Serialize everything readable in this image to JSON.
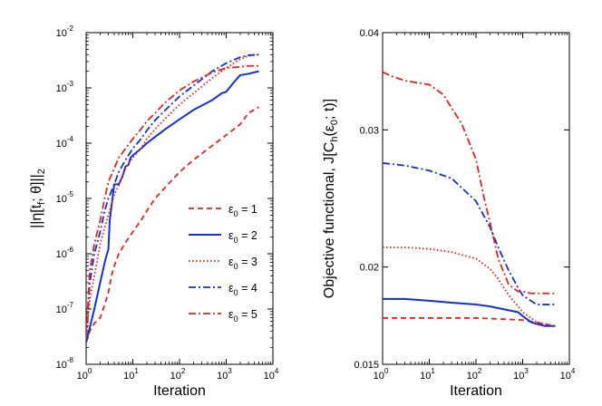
{
  "chart_data": [
    {
      "type": "line",
      "xlabel": "Iteration",
      "ylabel": "||η[t_f; θ]||_2",
      "xscale": "log",
      "yscale": "log",
      "xlim": [
        1,
        10000
      ],
      "ylim": [
        1e-08,
        0.01
      ],
      "grid": false,
      "legend": "lower-right",
      "x_ticks": [
        {
          "value": 1,
          "base": "10",
          "exp": "0"
        },
        {
          "value": 10,
          "base": "10",
          "exp": "1"
        },
        {
          "value": 100,
          "base": "10",
          "exp": "2"
        },
        {
          "value": 1000,
          "base": "10",
          "exp": "3"
        },
        {
          "value": 10000,
          "base": "10",
          "exp": "4"
        }
      ],
      "y_ticks": [
        {
          "value": 1e-08,
          "base": "10",
          "exp": "-8"
        },
        {
          "value": 1e-07,
          "base": "10",
          "exp": "-7"
        },
        {
          "value": 1e-06,
          "base": "10",
          "exp": "-6"
        },
        {
          "value": 1e-05,
          "base": "10",
          "exp": "-5"
        },
        {
          "value": 0.0001,
          "base": "10",
          "exp": "-4"
        },
        {
          "value": 0.001,
          "base": "10",
          "exp": "-3"
        },
        {
          "value": 0.01,
          "base": "10",
          "exp": "-2"
        }
      ],
      "series": [
        {
          "name": "ε0 = 1",
          "color": "#e8231d",
          "style": "dashed",
          "x": [
            1,
            1.2,
            1.5,
            2,
            2.5,
            3,
            3.5,
            4,
            5,
            7,
            10,
            15,
            20,
            30,
            50,
            100,
            200,
            500,
            1000,
            2000,
            3000,
            5000
          ],
          "y": [
            2.5e-08,
            4e-08,
            5.5e-08,
            7e-08,
            1.2e-07,
            2e-07,
            4e-07,
            6e-07,
            1e-06,
            1.6e-06,
            2.5e-06,
            4e-06,
            6e-06,
            1e-05,
            1.6e-05,
            3e-05,
            5e-05,
            9e-05,
            0.00014,
            0.00022,
            0.00035,
            0.00045
          ]
        },
        {
          "name": "ε0 = 2",
          "color": "#1030d8",
          "style": "solid",
          "x": [
            1,
            1.5,
            2,
            2.5,
            2.8,
            3,
            3.2,
            4,
            5,
            6,
            7,
            8,
            9,
            10,
            15,
            20,
            30,
            50,
            100,
            200,
            500,
            800,
            1000,
            1500,
            2000,
            3000,
            5000
          ],
          "y": [
            2.5e-08,
            1e-07,
            3e-07,
            7e-07,
            1e-06,
            1.2e-06,
            4e-06,
            1.8e-05,
            1.8e-05,
            2.5e-05,
            3.8e-05,
            4e-05,
            5.5e-05,
            6e-05,
            8e-05,
            0.0001,
            0.00013,
            0.00018,
            0.00027,
            0.0004,
            0.0006,
            0.0008,
            0.00085,
            0.0013,
            0.0017,
            0.0018,
            0.002
          ]
        },
        {
          "name": "ε0 = 3",
          "color": "#e8231d",
          "style": "dotted",
          "x": [
            1,
            1.2,
            1.5,
            2,
            2.5,
            3,
            4,
            5,
            7,
            10,
            15,
            20,
            30,
            50,
            100,
            200,
            500,
            1000,
            2000,
            3000,
            5000
          ],
          "y": [
            3e-08,
            1.5e-07,
            4e-07,
            1.5e-06,
            3e-06,
            5e-06,
            1.2e-05,
            1.7e-05,
            3.5e-05,
            5.5e-05,
            8e-05,
            0.00012,
            0.00018,
            0.00028,
            0.0005,
            0.0008,
            0.0015,
            0.0023,
            0.0033,
            0.0038,
            0.004
          ]
        },
        {
          "name": "ε0 = 4",
          "color": "#1030d8",
          "style": "dashdot",
          "x": [
            1,
            1.2,
            1.5,
            2,
            2.5,
            3,
            4,
            5,
            7,
            10,
            15,
            20,
            30,
            50,
            100,
            200,
            500,
            1000,
            2000,
            3000,
            5000
          ],
          "y": [
            3e-08,
            3e-07,
            1e-06,
            2.5e-06,
            6e-06,
            1e-05,
            1.8e-05,
            3e-05,
            5e-05,
            8e-05,
            0.00012,
            0.00017,
            0.00026,
            0.0004,
            0.0007,
            0.0011,
            0.002,
            0.0028,
            0.0036,
            0.0039,
            0.004
          ]
        },
        {
          "name": "ε0 = 5",
          "color": "#e8231d",
          "style": "dashdot",
          "x": [
            1,
            1.2,
            1.5,
            2,
            2.5,
            3,
            4,
            5,
            7,
            10,
            15,
            20,
            30,
            50,
            100,
            200,
            500,
            1000,
            2000,
            3000,
            5000
          ],
          "y": [
            3e-08,
            5e-07,
            1.5e-06,
            4e-06,
            1e-05,
            2e-05,
            3.5e-05,
            5.5e-05,
            8e-05,
            0.00012,
            0.00018,
            0.00025,
            0.00035,
            0.00055,
            0.0009,
            0.0013,
            0.0019,
            0.0023,
            0.0024,
            0.0025,
            0.0025
          ]
        }
      ]
    },
    {
      "type": "line",
      "xlabel": "Iteration",
      "ylabel": "Objective functional, J[C_h(ε_0; t)]",
      "xscale": "log",
      "yscale": "log",
      "xlim": [
        1,
        10000
      ],
      "ylim": [
        0.015,
        0.04
      ],
      "grid": false,
      "x_ticks": [
        {
          "value": 1,
          "base": "10",
          "exp": "0"
        },
        {
          "value": 10,
          "base": "10",
          "exp": "1"
        },
        {
          "value": 100,
          "base": "10",
          "exp": "2"
        },
        {
          "value": 1000,
          "base": "10",
          "exp": "3"
        },
        {
          "value": 10000,
          "base": "10",
          "exp": "4"
        }
      ],
      "y_ticks": [
        {
          "value": 0.015,
          "label": "0.015"
        },
        {
          "value": 0.02,
          "label": "0.02"
        },
        {
          "value": 0.03,
          "label": "0.03"
        },
        {
          "value": 0.04,
          "label": "0.04"
        }
      ],
      "series": [
        {
          "name": "ε0 = 1",
          "color": "#e8231d",
          "style": "dashed",
          "x": [
            1,
            10,
            100,
            1000,
            3000,
            5000
          ],
          "y": [
            0.0172,
            0.0172,
            0.0172,
            0.0171,
            0.0169,
            0.0168
          ]
        },
        {
          "name": "ε0 = 2",
          "color": "#1030d8",
          "style": "solid",
          "x": [
            1,
            3,
            10,
            30,
            100,
            200,
            500,
            800,
            1000,
            1500,
            2000,
            3000,
            5000
          ],
          "y": [
            0.0182,
            0.0182,
            0.0181,
            0.018,
            0.0179,
            0.0178,
            0.0176,
            0.0175,
            0.0173,
            0.017,
            0.0169,
            0.0168,
            0.0168
          ]
        },
        {
          "name": "ε0 = 3",
          "color": "#e8231d",
          "style": "dotted",
          "x": [
            1,
            3,
            10,
            30,
            100,
            200,
            300,
            500,
            800,
            1000,
            1500,
            2000,
            3000,
            5000
          ],
          "y": [
            0.0212,
            0.0212,
            0.0211,
            0.0209,
            0.0205,
            0.0199,
            0.0193,
            0.0184,
            0.0178,
            0.0175,
            0.0172,
            0.017,
            0.0169,
            0.0168
          ]
        },
        {
          "name": "ε0 = 4",
          "color": "#1030d8",
          "style": "dashdot",
          "x": [
            1,
            3,
            10,
            30,
            100,
            200,
            300,
            500,
            800,
            1000,
            1500,
            2000,
            3000,
            5000
          ],
          "y": [
            0.0272,
            0.027,
            0.0266,
            0.026,
            0.0243,
            0.0225,
            0.0212,
            0.0198,
            0.0188,
            0.0184,
            0.0181,
            0.0179,
            0.0179,
            0.0179
          ]
        },
        {
          "name": "ε0 = 5",
          "color": "#e8231d",
          "style": "dashdot",
          "x": [
            1,
            1.5,
            3,
            10,
            20,
            50,
            100,
            150,
            200,
            300,
            500,
            800,
            1000,
            1500,
            2000,
            3000,
            5000
          ],
          "y": [
            0.0356,
            0.0352,
            0.0347,
            0.0343,
            0.0333,
            0.0305,
            0.0275,
            0.0245,
            0.0228,
            0.0205,
            0.019,
            0.0186,
            0.0186,
            0.0185,
            0.0185,
            0.0185,
            0.0185
          ]
        }
      ]
    }
  ]
}
